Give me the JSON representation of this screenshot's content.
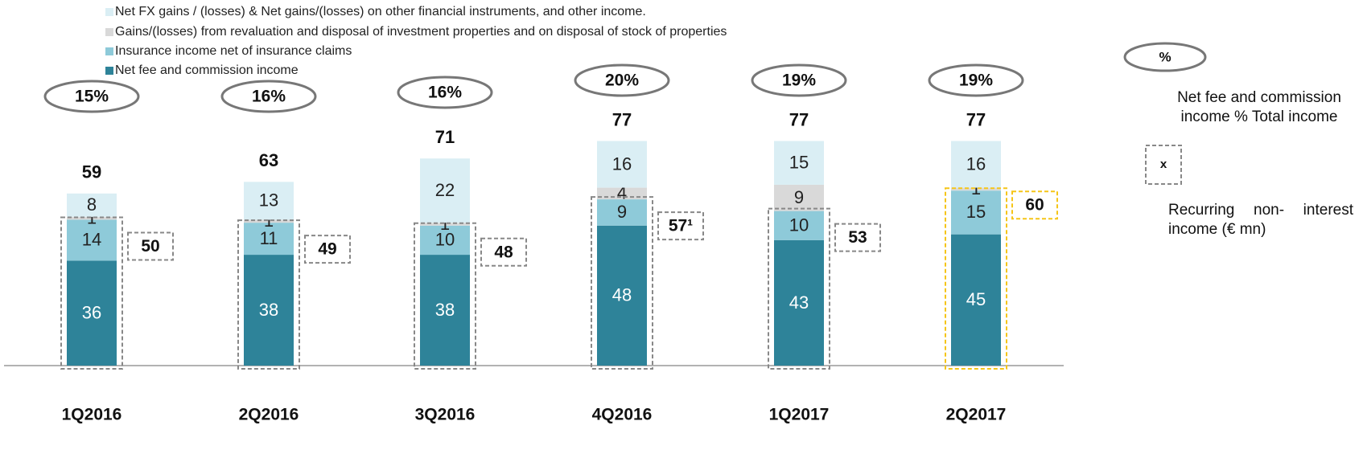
{
  "chart_data": {
    "type": "stacked_bar",
    "categories": [
      "1Q2016",
      "2Q2016",
      "3Q2016",
      "4Q2016",
      "1Q2017",
      "2Q2017"
    ],
    "series": [
      {
        "name": "Net fee and commission income",
        "color": "#2e8399",
        "values": [
          36,
          38,
          38,
          48,
          43,
          45
        ]
      },
      {
        "name": "Insurance income net of insurance claims",
        "color": "#8ecad9",
        "values": [
          14,
          11,
          10,
          9,
          10,
          15
        ]
      },
      {
        "name": "Gains/(losses) from revaluation and disposal of investment properties and on disposal of stock of properties",
        "color": "#d9d9d9",
        "values": [
          1,
          1,
          1,
          4,
          9,
          1
        ]
      },
      {
        "name": "Net FX gains / (losses)  & Net gains/(losses) on other financial instruments, and other income.",
        "color": "#daeef4",
        "values": [
          8,
          13,
          22,
          16,
          15,
          16
        ]
      }
    ],
    "totals": [
      59,
      63,
      71,
      77,
      77,
      77
    ],
    "share": {
      "name": "Net fee and commission income % Total income",
      "symbol": "%",
      "values": [
        15,
        16,
        16,
        20,
        19,
        19
      ],
      "value_labels": [
        "15%",
        "16%",
        "16%",
        "20%",
        "19%",
        "19%"
      ]
    },
    "recurring": {
      "name": "Recurring  non- interest income (€ mn)",
      "symbol": "x",
      "values": [
        50,
        49,
        48,
        57,
        53,
        60
      ],
      "value_labels": [
        "50",
        "49",
        "48",
        "57¹",
        "53",
        "60"
      ],
      "color": "#888888",
      "highlight_color": "#f5c518"
    },
    "ylim": [
      0,
      100
    ]
  }
}
